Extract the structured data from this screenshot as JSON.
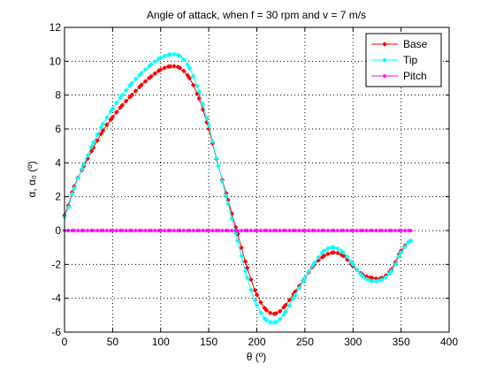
{
  "chart_data": {
    "type": "line",
    "title": "Angle of attack, when f = 30 rpm and v = 7 m/s",
    "xlabel": "θ (º)",
    "ylabel": "α, α₀ (º)",
    "xlim": [
      0,
      400
    ],
    "ylim": [
      -6,
      12
    ],
    "xticks": [
      "0",
      "50",
      "100",
      "150",
      "200",
      "250",
      "300",
      "350",
      "400"
    ],
    "yticks": [
      "-6",
      "-4",
      "-2",
      "0",
      "2",
      "4",
      "6",
      "8",
      "10",
      "12"
    ],
    "grid": true,
    "legend_position": "top-right",
    "x": [
      0,
      10,
      20,
      30,
      40,
      50,
      60,
      70,
      80,
      90,
      100,
      110,
      120,
      130,
      140,
      150,
      160,
      170,
      180,
      190,
      200,
      210,
      220,
      230,
      240,
      250,
      260,
      270,
      280,
      290,
      300,
      310,
      320,
      330,
      340,
      350,
      360
    ],
    "series": [
      {
        "name": "Base",
        "color": "#ff0000",
        "marker": "diamond",
        "values": [
          0.9,
          2.6,
          3.8,
          4.9,
          5.9,
          6.7,
          7.4,
          8.0,
          8.6,
          9.1,
          9.5,
          9.7,
          9.6,
          9.0,
          7.8,
          6.0,
          3.8,
          1.8,
          -0.2,
          -2.2,
          -3.8,
          -4.7,
          -4.9,
          -4.4,
          -3.6,
          -2.8,
          -2.0,
          -1.5,
          -1.3,
          -1.5,
          -2.1,
          -2.6,
          -2.8,
          -2.8,
          -2.3,
          -1.2,
          -0.6
        ]
      },
      {
        "name": "Tip",
        "color": "#00ffff",
        "marker": "diamond",
        "values": [
          0.8,
          2.5,
          3.9,
          5.2,
          6.3,
          7.2,
          8.0,
          8.7,
          9.3,
          9.8,
          10.2,
          10.4,
          10.3,
          9.6,
          8.2,
          6.2,
          3.8,
          1.6,
          -0.6,
          -2.8,
          -4.4,
          -5.3,
          -5.4,
          -4.8,
          -3.8,
          -2.8,
          -1.9,
          -1.2,
          -1.0,
          -1.3,
          -2.0,
          -2.7,
          -3.0,
          -2.9,
          -2.4,
          -1.3,
          -0.6
        ]
      },
      {
        "name": "Pitch",
        "color": "#ff00ff",
        "marker": "star",
        "values": [
          0,
          0,
          0,
          0,
          0,
          0,
          0,
          0,
          0,
          0,
          0,
          0,
          0,
          0,
          0,
          0,
          0,
          0,
          0,
          0,
          0,
          0,
          0,
          0,
          0,
          0,
          0,
          0,
          0,
          0,
          0,
          0,
          0,
          0,
          0,
          0,
          0
        ]
      }
    ]
  }
}
